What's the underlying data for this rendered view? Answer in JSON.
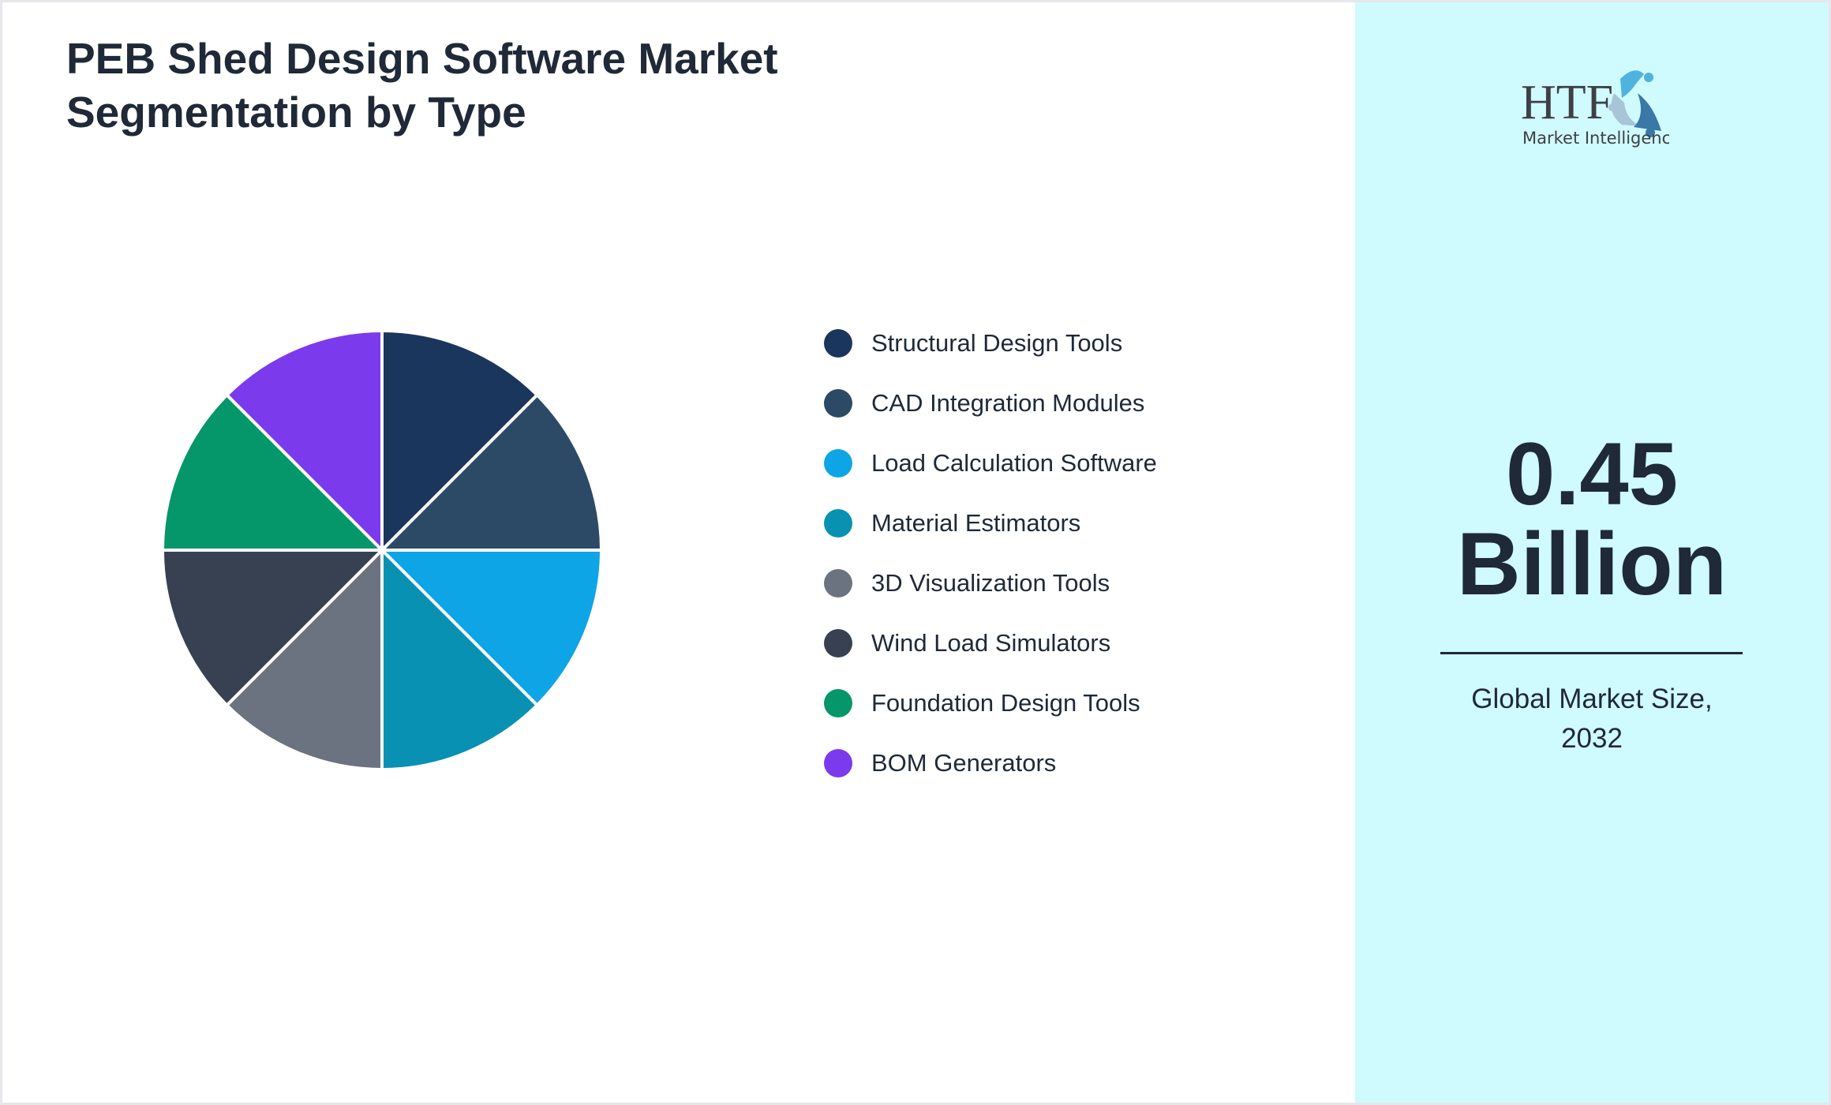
{
  "chart_data": {
    "type": "pie",
    "title": "PEB Shed Design Software Market Segmentation by Type",
    "categories": [
      "Structural Design Tools",
      "CAD Integration Modules",
      "Load Calculation Software",
      "Material Estimators",
      "3D Visualization Tools",
      "Wind Load Simulators",
      "Foundation Design Tools",
      "BOM Generators"
    ],
    "values": [
      12.5,
      12.5,
      12.5,
      12.5,
      12.5,
      12.5,
      12.5,
      12.5
    ],
    "colors": [
      "#1b365d",
      "#2c4a66",
      "#0ea5e6",
      "#0891b2",
      "#6b7280",
      "#374151",
      "#059669",
      "#7c3aed"
    ],
    "legend_position": "right"
  },
  "logo": {
    "text": "HTF",
    "subtext": "Market Intelligence"
  },
  "summary": {
    "value": "0.45",
    "unit": "Billion",
    "caption_line1": "Global Market Size,",
    "caption_line2": "2032"
  }
}
